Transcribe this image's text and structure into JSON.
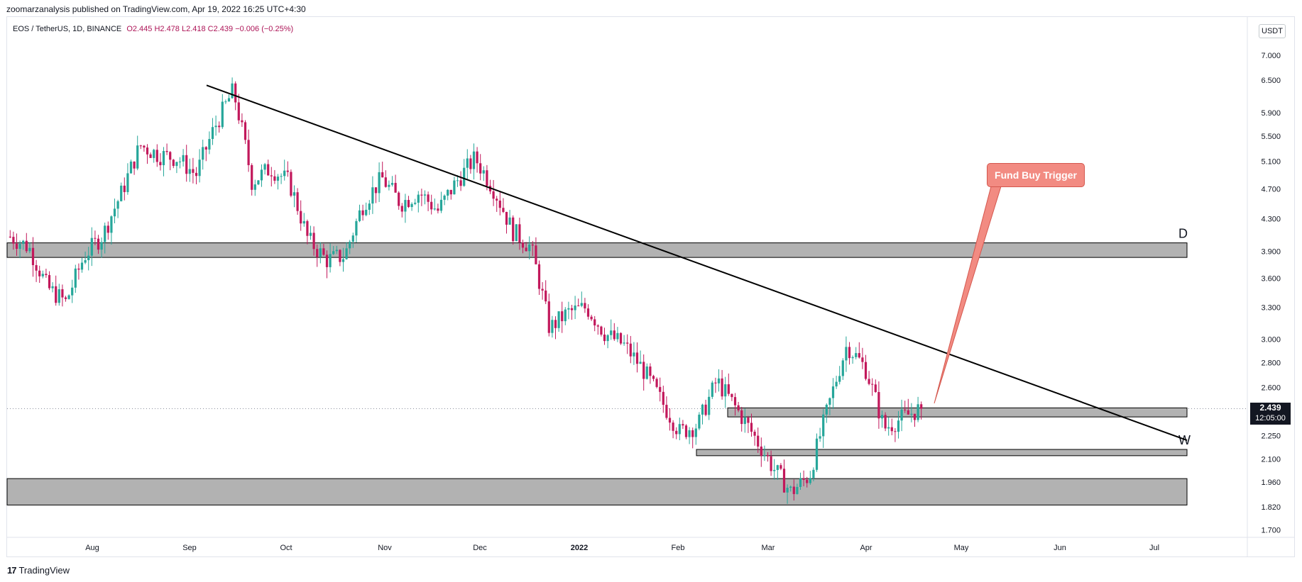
{
  "header": {
    "text": "zoomarzanalysis published on TradingView.com, Apr 19, 2022 16:25 UTC+4:30"
  },
  "legend": {
    "symbol": "EOS / TetherUS, 1D, BINANCE",
    "values": "O2.445  H2.478  L2.418  C2.439  −0.006 (−0.25%)"
  },
  "currency": "USDT",
  "last_price": {
    "value": "2.439",
    "countdown": "12:05:00"
  },
  "callout": {
    "label": "Fund Buy Trigger",
    "color": "#f28b82"
  },
  "footer": {
    "logo": "17",
    "brand": "TradingView"
  },
  "colors": {
    "up": "#26a69a",
    "down": "#c2185b",
    "zone": "#b2b2b2",
    "trendline": "#000000"
  },
  "chart_data": {
    "type": "candlestick",
    "symbol": "EOS / TetherUS",
    "timeframe": "1D",
    "exchange": "BINANCE",
    "y_ticks": [
      "7",
      "7.000",
      "6.500",
      "5.900",
      "5.500",
      "5.100",
      "4.700",
      "4.300",
      "3.900",
      "3.600",
      "3.300",
      "3.000",
      "2.800",
      "2.600",
      "2.250",
      "2.100",
      "1.960",
      "1.820",
      "1.700"
    ],
    "x_ticks": [
      "Aug",
      "Sep",
      "Oct",
      "Nov",
      "Dec",
      "2022",
      "Feb",
      "Mar",
      "Apr",
      "May",
      "Jun",
      "Jul"
    ],
    "ylim": [
      1.7,
      7.0
    ],
    "y_scale": "log",
    "last": {
      "open": 2.445,
      "high": 2.478,
      "low": 2.418,
      "close": 2.439
    },
    "ohlc_path": [
      [
        3.95,
        4.2
      ],
      [
        4.1,
        3.8
      ],
      [
        3.6,
        3.4
      ],
      [
        3.2,
        3.5
      ],
      [
        3.7,
        4.0
      ],
      [
        4.0,
        4.2
      ],
      [
        4.5,
        4.8
      ],
      [
        5.2,
        5.5
      ],
      [
        5.4,
        5.0
      ],
      [
        4.9,
        5.4
      ],
      [
        5.1,
        4.7
      ],
      [
        5.4,
        5.9
      ],
      [
        6.2,
        6.4
      ],
      [
        5.0,
        4.6
      ],
      [
        4.7,
        5.3
      ],
      [
        5.2,
        4.4
      ],
      [
        4.2,
        3.9
      ],
      [
        3.9,
        3.7
      ],
      [
        3.6,
        4.1
      ],
      [
        4.4,
        4.6
      ],
      [
        4.7,
        5.0
      ],
      [
        4.6,
        4.4
      ],
      [
        4.9,
        4.4
      ],
      [
        4.5,
        4.3
      ],
      [
        4.7,
        4.9
      ],
      [
        5.2,
        5.1
      ],
      [
        4.8,
        4.6
      ],
      [
        4.2,
        4.1
      ],
      [
        4.0,
        3.9
      ],
      [
        3.3,
        2.9
      ],
      [
        3.2,
        3.3
      ],
      [
        3.4,
        3.2
      ],
      [
        3.0,
        3.1
      ],
      [
        3.1,
        2.8
      ],
      [
        2.8,
        2.7
      ],
      [
        2.6,
        2.4
      ],
      [
        2.3,
        2.25
      ],
      [
        2.3,
        2.35
      ],
      [
        2.6,
        2.7
      ],
      [
        2.5,
        2.4
      ],
      [
        2.3,
        2.2
      ],
      [
        2.1,
        2.0
      ],
      [
        1.95,
        1.85
      ],
      [
        1.9,
        2.1
      ],
      [
        2.3,
        2.6
      ],
      [
        2.9,
        3.0
      ],
      [
        2.8,
        2.7
      ],
      [
        2.4,
        2.2
      ],
      [
        2.3,
        2.45
      ],
      [
        2.45,
        2.439
      ]
    ],
    "zones": [
      {
        "label": "D",
        "low": 3.83,
        "high": 4.0
      },
      {
        "label": "",
        "low": 2.38,
        "high": 2.445
      },
      {
        "label": "W",
        "low": 2.12,
        "high": 2.16
      },
      {
        "label": "",
        "low": 1.83,
        "high": 1.98
      }
    ],
    "trendline": {
      "from": {
        "date": "Sep 2021",
        "price": 6.4
      },
      "to": {
        "date": "Jul 2022",
        "price": 2.22
      }
    },
    "annotations": [
      "Fund Buy Trigger",
      "D",
      "W"
    ]
  }
}
